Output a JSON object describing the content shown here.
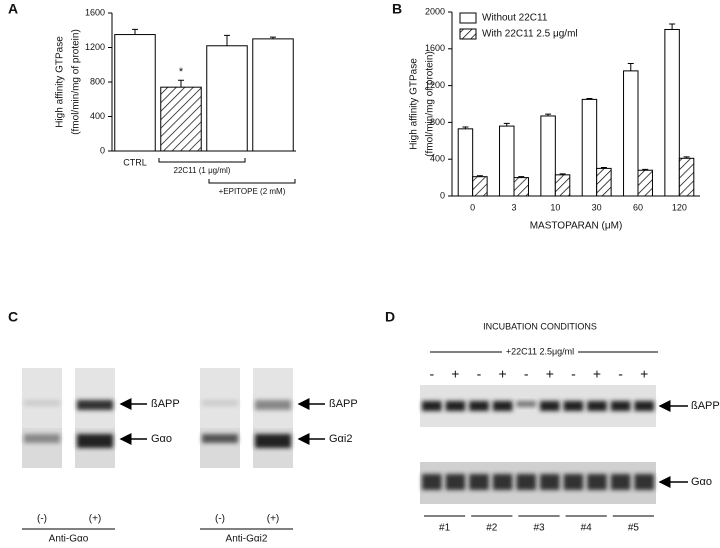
{
  "chart_data": [
    {
      "type": "bar",
      "panel_label": "A",
      "y_label": [
        "High affinity GTPase",
        "(fmol/min/mg of protein)"
      ],
      "categories": [
        "CTRL",
        null,
        null,
        null
      ],
      "values": [
        1350,
        740,
        1220,
        1300
      ],
      "errors": [
        60,
        80,
        120,
        20
      ],
      "hatched": [
        false,
        true,
        false,
        false
      ],
      "color": "#ffffff",
      "annotations": [
        "*",
        "22C11 (1 μg/ml)",
        "+EPITOPE (2 mM)"
      ],
      "ylim": [
        0,
        1600
      ],
      "yticks": [
        0,
        400,
        800,
        1200,
        1600
      ]
    },
    {
      "type": "bar",
      "panel_label": "B",
      "y_label": [
        "High affinity GTPase",
        "(fmol/min/mg of protein)"
      ],
      "x_label": "MASTOPARAN (μM)",
      "categories": [
        "0",
        "3",
        "10",
        "30",
        "60",
        "120"
      ],
      "series": [
        {
          "name": "Without 22C11",
          "color": "#ffffff",
          "hatched": false,
          "values": [
            730,
            760,
            870,
            1050,
            1360,
            1810
          ],
          "errors": [
            20,
            30,
            20,
            10,
            80,
            60
          ]
        },
        {
          "name": "With 22C11 2.5 μg/ml",
          "color": "#ffffff",
          "hatched": true,
          "values": [
            210,
            200,
            230,
            300,
            280,
            410
          ],
          "errors": [
            10,
            10,
            10,
            10,
            10,
            15
          ]
        }
      ],
      "legend": "upper left",
      "ylim": [
        0,
        2000
      ],
      "yticks": [
        0,
        400,
        800,
        1200,
        1600,
        2000
      ]
    }
  ],
  "panel_c": {
    "label": "C",
    "blots": [
      {
        "lanes": [
          "(-)",
          "(+)"
        ],
        "antibody": "Anti-Gαo",
        "bands": [
          "ßAPP",
          "Gαo"
        ]
      },
      {
        "lanes": [
          "(-)",
          "(+)"
        ],
        "antibody": "Anti-Gαi2",
        "bands": [
          "ßAPP",
          "Gαi2"
        ]
      }
    ]
  },
  "panel_d": {
    "label": "D",
    "title": "INCUBATION CONDITIONS",
    "treatment": "+22C11 2.5μg/ml",
    "lanes": [
      "-",
      "+",
      "-",
      "+",
      "-",
      "+",
      "-",
      "+",
      "-",
      "+"
    ],
    "bands": [
      "ßAPP",
      "Gαo"
    ],
    "groups": [
      "#1",
      "#2",
      "#3",
      "#4",
      "#5"
    ]
  }
}
